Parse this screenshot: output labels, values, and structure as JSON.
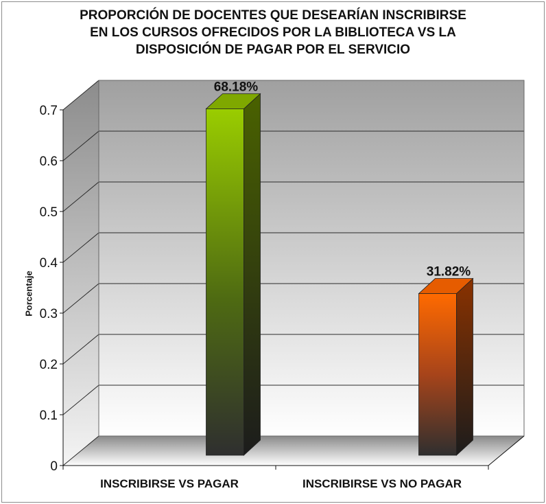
{
  "chart_data": {
    "type": "bar",
    "title_lines": [
      "PROPORCIÓN DE DOCENTES QUE DESEARÍAN INSCRIBIRSE",
      "EN LOS CURSOS OFRECIDOS POR LA BIBLIOTECA VS LA",
      "DISPOSICIÓN DE PAGAR POR EL SERVICIO"
    ],
    "ylabel": "Porcentaje",
    "xlabel": "",
    "categories": [
      "INSCRIBIRSE VS PAGAR",
      "INSCRIBIRSE VS NO PAGAR"
    ],
    "values": [
      0.6818,
      0.3182
    ],
    "data_labels": [
      "68.18%",
      "31.82%"
    ],
    "ylim": [
      0,
      0.7
    ],
    "yticks": [
      "0",
      "0.1",
      "0.2",
      "0.3",
      "0.4",
      "0.5",
      "0.6",
      "0.7"
    ],
    "grid": true,
    "legend": "none",
    "colors": {
      "bar1_front_top": "#9acd00",
      "bar1_front_bottom": "#2f2f2f",
      "bar1_side": "#4a6200",
      "bar1_top": "#7fa800",
      "bar2_front_top": "#ff6a00",
      "bar2_front_bottom": "#2f2f2f",
      "bar2_side": "#8a3200",
      "bar2_top": "#e65c00",
      "wall_top": "#a0a0a0",
      "wall_bottom": "#ffffff"
    }
  }
}
